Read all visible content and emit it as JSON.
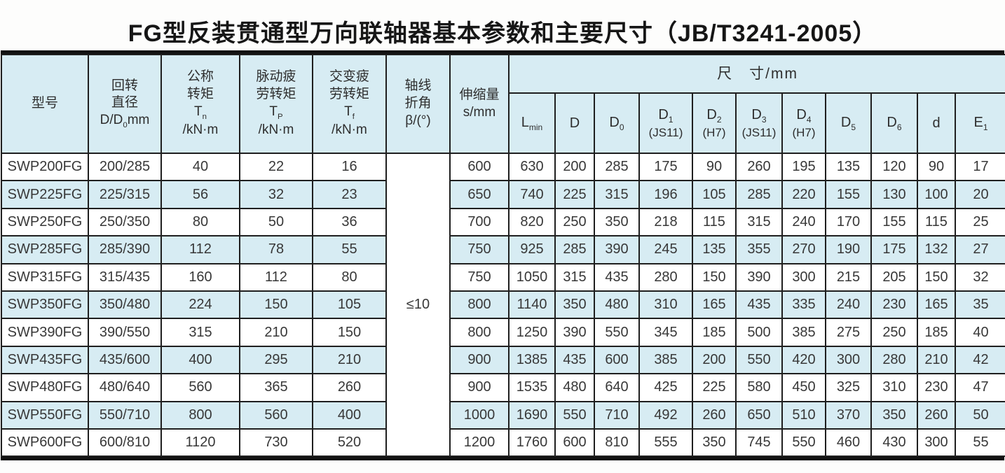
{
  "title": "FG型反装贯通型万向联轴器基本参数和主要尺寸（JB/T3241-2005）",
  "table": {
    "header": {
      "model": "型号",
      "rotation": {
        "l1": "回转",
        "l2": "直径",
        "f_base": "D/D",
        "f_sub": "0",
        "f_tail": "mm"
      },
      "nominal": {
        "l1": "公称",
        "l2": "转矩",
        "sym": "T",
        "sym_sub": "n",
        "unit": "/kN·m"
      },
      "pulsating": {
        "l1": "脉动疲",
        "l2": "劳转矩",
        "sym": "T",
        "sym_sub": "P",
        "unit": "/kN·m"
      },
      "alternating": {
        "l1": "交变疲",
        "l2": "劳转矩",
        "sym": "T",
        "sym_sub": "f",
        "unit": "/kN·m"
      },
      "angle": {
        "l1": "轴线",
        "l2": "折角",
        "l3": "β/(°)"
      },
      "stretch": {
        "l1": "伸缩量",
        "l2": "s/mm"
      },
      "dims_group": "尺　寸/mm",
      "dims": [
        {
          "name": "lmin",
          "base": "L",
          "sub": "min",
          "note": ""
        },
        {
          "name": "d-cap",
          "base": "D",
          "sub": "",
          "note": ""
        },
        {
          "name": "d0",
          "base": "D",
          "sub": "0",
          "note": ""
        },
        {
          "name": "d1",
          "base": "D",
          "sub": "1",
          "note": "(JS11)"
        },
        {
          "name": "d2",
          "base": "D",
          "sub": "2",
          "note": "(H7)"
        },
        {
          "name": "d3",
          "base": "D",
          "sub": "3",
          "note": "(JS11)"
        },
        {
          "name": "d4",
          "base": "D",
          "sub": "4",
          "note": "(H7)"
        },
        {
          "name": "d5",
          "base": "D",
          "sub": "5",
          "note": ""
        },
        {
          "name": "d6",
          "base": "D",
          "sub": "6",
          "note": ""
        },
        {
          "name": "d-small",
          "base": "d",
          "sub": "",
          "note": ""
        },
        {
          "name": "e1",
          "base": "E",
          "sub": "1",
          "note": ""
        }
      ]
    },
    "angle_value": "≤10",
    "rows": [
      {
        "model": "SWP200FG",
        "values": [
          "200/285",
          "40",
          "22",
          "16",
          "600",
          "630",
          "200",
          "285",
          "175",
          "90",
          "260",
          "195",
          "135",
          "120",
          "90",
          "17"
        ]
      },
      {
        "model": "SWP225FG",
        "values": [
          "225/315",
          "56",
          "32",
          "23",
          "650",
          "740",
          "225",
          "315",
          "196",
          "105",
          "285",
          "220",
          "155",
          "130",
          "100",
          "20"
        ]
      },
      {
        "model": "SWP250FG",
        "values": [
          "250/350",
          "80",
          "50",
          "36",
          "700",
          "820",
          "250",
          "350",
          "218",
          "115",
          "315",
          "240",
          "170",
          "155",
          "115",
          "25"
        ]
      },
      {
        "model": "SWP285FG",
        "values": [
          "285/390",
          "112",
          "78",
          "55",
          "750",
          "925",
          "285",
          "390",
          "245",
          "135",
          "355",
          "270",
          "190",
          "175",
          "132",
          "27"
        ]
      },
      {
        "model": "SWP315FG",
        "values": [
          "315/435",
          "160",
          "112",
          "80",
          "750",
          "1050",
          "315",
          "435",
          "280",
          "150",
          "390",
          "300",
          "215",
          "205",
          "150",
          "32"
        ]
      },
      {
        "model": "SWP350FG",
        "values": [
          "350/480",
          "224",
          "150",
          "105",
          "800",
          "1140",
          "350",
          "480",
          "310",
          "165",
          "435",
          "335",
          "240",
          "230",
          "165",
          "35"
        ]
      },
      {
        "model": "SWP390FG",
        "values": [
          "390/550",
          "315",
          "210",
          "150",
          "800",
          "1250",
          "390",
          "550",
          "345",
          "185",
          "500",
          "385",
          "275",
          "250",
          "185",
          "40"
        ]
      },
      {
        "model": "SWP435FG",
        "values": [
          "435/600",
          "400",
          "295",
          "210",
          "900",
          "1385",
          "435",
          "600",
          "385",
          "200",
          "550",
          "420",
          "300",
          "280",
          "210",
          "42"
        ]
      },
      {
        "model": "SWP480FG",
        "values": [
          "480/640",
          "560",
          "365",
          "260",
          "900",
          "1535",
          "480",
          "640",
          "425",
          "225",
          "580",
          "450",
          "325",
          "310",
          "230",
          "47"
        ]
      },
      {
        "model": "SWP550FG",
        "values": [
          "550/710",
          "800",
          "560",
          "400",
          "1000",
          "1690",
          "550",
          "710",
          "492",
          "260",
          "650",
          "510",
          "370",
          "350",
          "260",
          "50"
        ]
      },
      {
        "model": "SWP600FG",
        "values": [
          "600/810",
          "1120",
          "730",
          "520",
          "1200",
          "1760",
          "600",
          "810",
          "555",
          "350",
          "745",
          "550",
          "460",
          "430",
          "300",
          "55"
        ]
      }
    ]
  },
  "colors": {
    "stripe": "#d7ecf3",
    "border": "#1f1f1f"
  }
}
